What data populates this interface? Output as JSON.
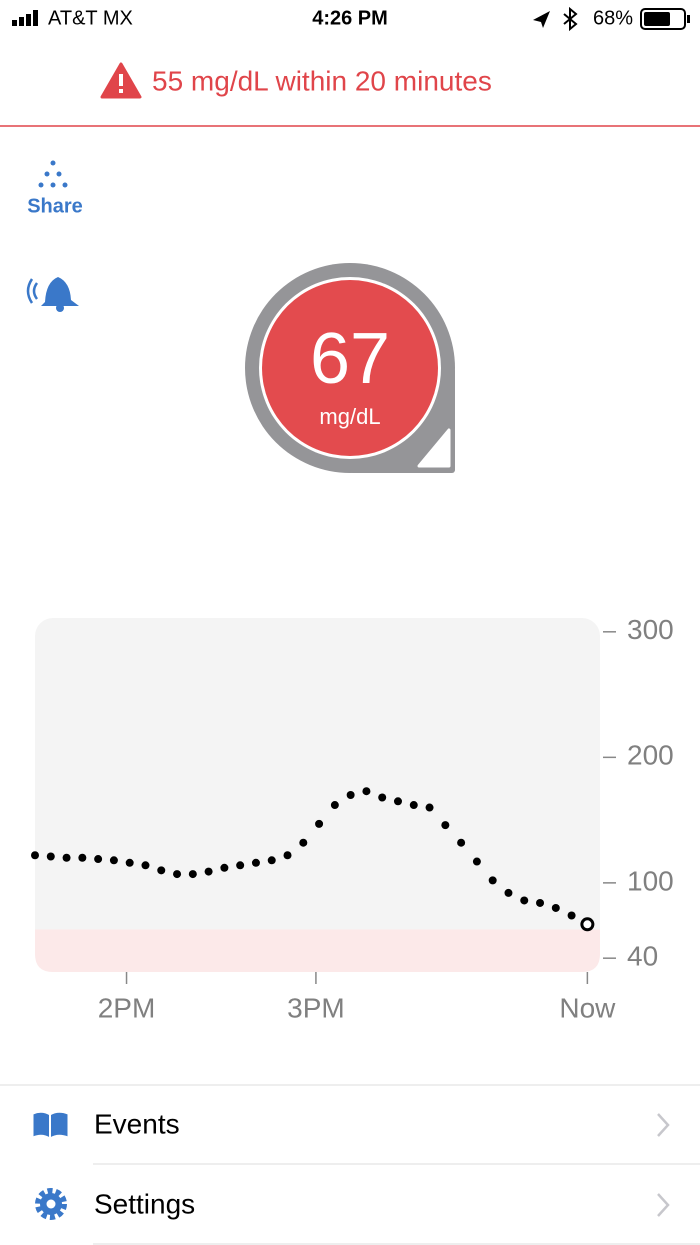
{
  "status_bar": {
    "carrier": "AT&T MX",
    "time": "4:26 PM",
    "battery": "68%"
  },
  "alert": {
    "text": "55 mg/dL within 20 minutes"
  },
  "share": {
    "label": "Share"
  },
  "reading": {
    "value": 67,
    "unit": "mg/dL"
  },
  "chart_data": {
    "type": "scatter",
    "x": [
      811,
      816,
      821,
      826,
      831,
      836,
      841,
      846,
      851,
      856,
      861,
      866,
      871,
      876,
      881,
      886,
      891,
      896,
      901,
      906,
      911,
      916,
      921,
      926,
      931,
      936,
      941,
      946,
      951,
      956,
      961,
      966,
      971,
      976,
      981,
      986
    ],
    "values": [
      122,
      121,
      120,
      120,
      119,
      118,
      116,
      114,
      110,
      107,
      107,
      109,
      112,
      114,
      116,
      118,
      122,
      132,
      147,
      162,
      170,
      173,
      168,
      165,
      162,
      160,
      146,
      132,
      117,
      102,
      92,
      86,
      84,
      80,
      74,
      67
    ],
    "color": "#000000",
    "xlim": [
      811,
      990
    ],
    "xticks": [
      {
        "value": 840,
        "label": "2PM"
      },
      {
        "value": 900,
        "label": "3PM"
      },
      {
        "value": 986,
        "label": "Now"
      }
    ],
    "ylim": [
      29,
      311
    ],
    "yticks": [
      40,
      100,
      200,
      300
    ],
    "low_band_top": 63,
    "low_band_color": "#fce9e9",
    "panel_color": "#f4f4f4"
  },
  "menu": {
    "items": [
      "Events",
      "Settings"
    ]
  }
}
